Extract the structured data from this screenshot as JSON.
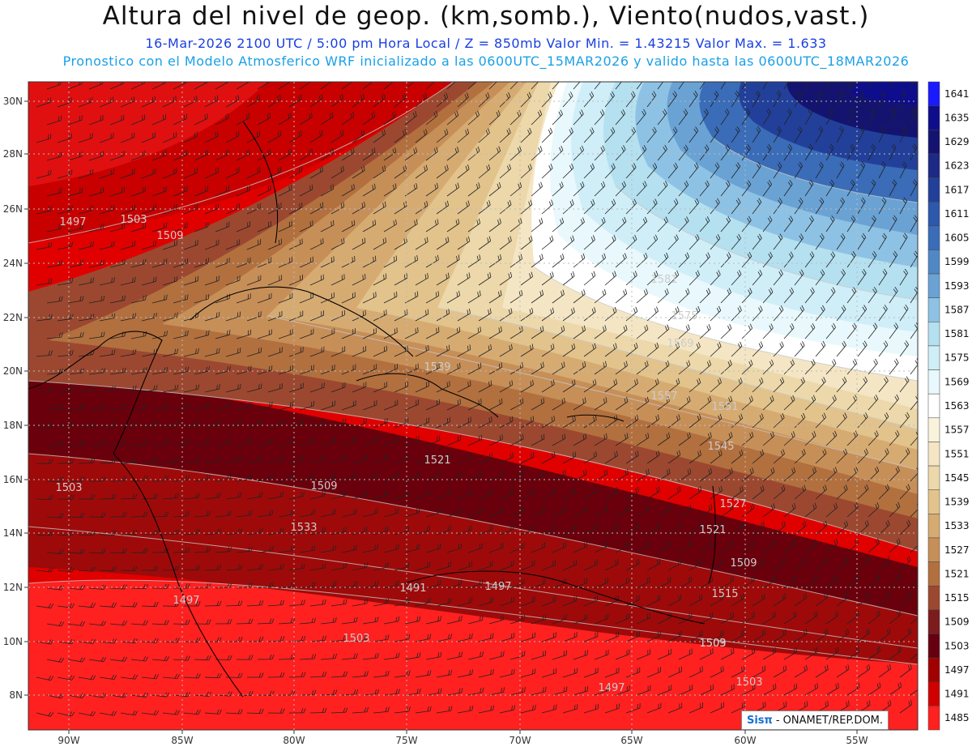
{
  "header": {
    "title": "Altura del nivel de geop. (km,somb.), Viento(nudos,vast.)",
    "line1": "16-Mar-2026  2100 UTC / 5:00 pm Hora Local / Z = 850mb     Valor Min. = 1.43215  Valor Max. = 1.633",
    "line2": "Pronostico con el Modelo Atmosferico WRF inicializado a las 0600UTC_15MAR2026 y valido hasta las  0600UTC_18MAR2026"
  },
  "axes": {
    "lat_labels": [
      "30N",
      "28N",
      "26N",
      "24N",
      "22N",
      "20N",
      "18N",
      "16N",
      "14N",
      "12N",
      "10N",
      "8N"
    ],
    "lon_labels": [
      "90W",
      "85W",
      "80W",
      "75W",
      "70W",
      "65W",
      "60W",
      "55W"
    ]
  },
  "colorbar": {
    "levels": [
      "1641",
      "1635",
      "1629",
      "1623",
      "1617",
      "1611",
      "1605",
      "1599",
      "1593",
      "1587",
      "1581",
      "1575",
      "1569",
      "1563",
      "1557",
      "1551",
      "1545",
      "1539",
      "1533",
      "1527",
      "1521",
      "1515",
      "1509",
      "1503",
      "1497",
      "1491",
      "1485"
    ],
    "colors": [
      "#1a1aff",
      "#0e0e8c",
      "#141470",
      "#1c2a85",
      "#22409a",
      "#2e58ac",
      "#3a6cb8",
      "#5088c6",
      "#6aa2d4",
      "#8ec2e4",
      "#b4e0f0",
      "#cfeef8",
      "#e8f8fc",
      "#ffffff",
      "#faf3dc",
      "#f4e6c4",
      "#ecd8aa",
      "#e2c38c",
      "#d6ab72",
      "#c78f58",
      "#b2703f",
      "#9c4830",
      "#7d1c1c",
      "#660010",
      "#a00000",
      "#d00000",
      "#ff2020"
    ]
  },
  "contour_labels": [
    "1497",
    "1503",
    "1509",
    "1539",
    "1557",
    "1551",
    "1545",
    "1521",
    "1509",
    "1503",
    "1497",
    "1491",
    "1503",
    "1497",
    "1515",
    "1509",
    "1503",
    "1497",
    "1581",
    "1575",
    "1569",
    "1533",
    "1527",
    "1521",
    "1509",
    "1503"
  ],
  "credit": {
    "logo": "Sisπ",
    "text": "- ONAMET/REP.DOM."
  }
}
